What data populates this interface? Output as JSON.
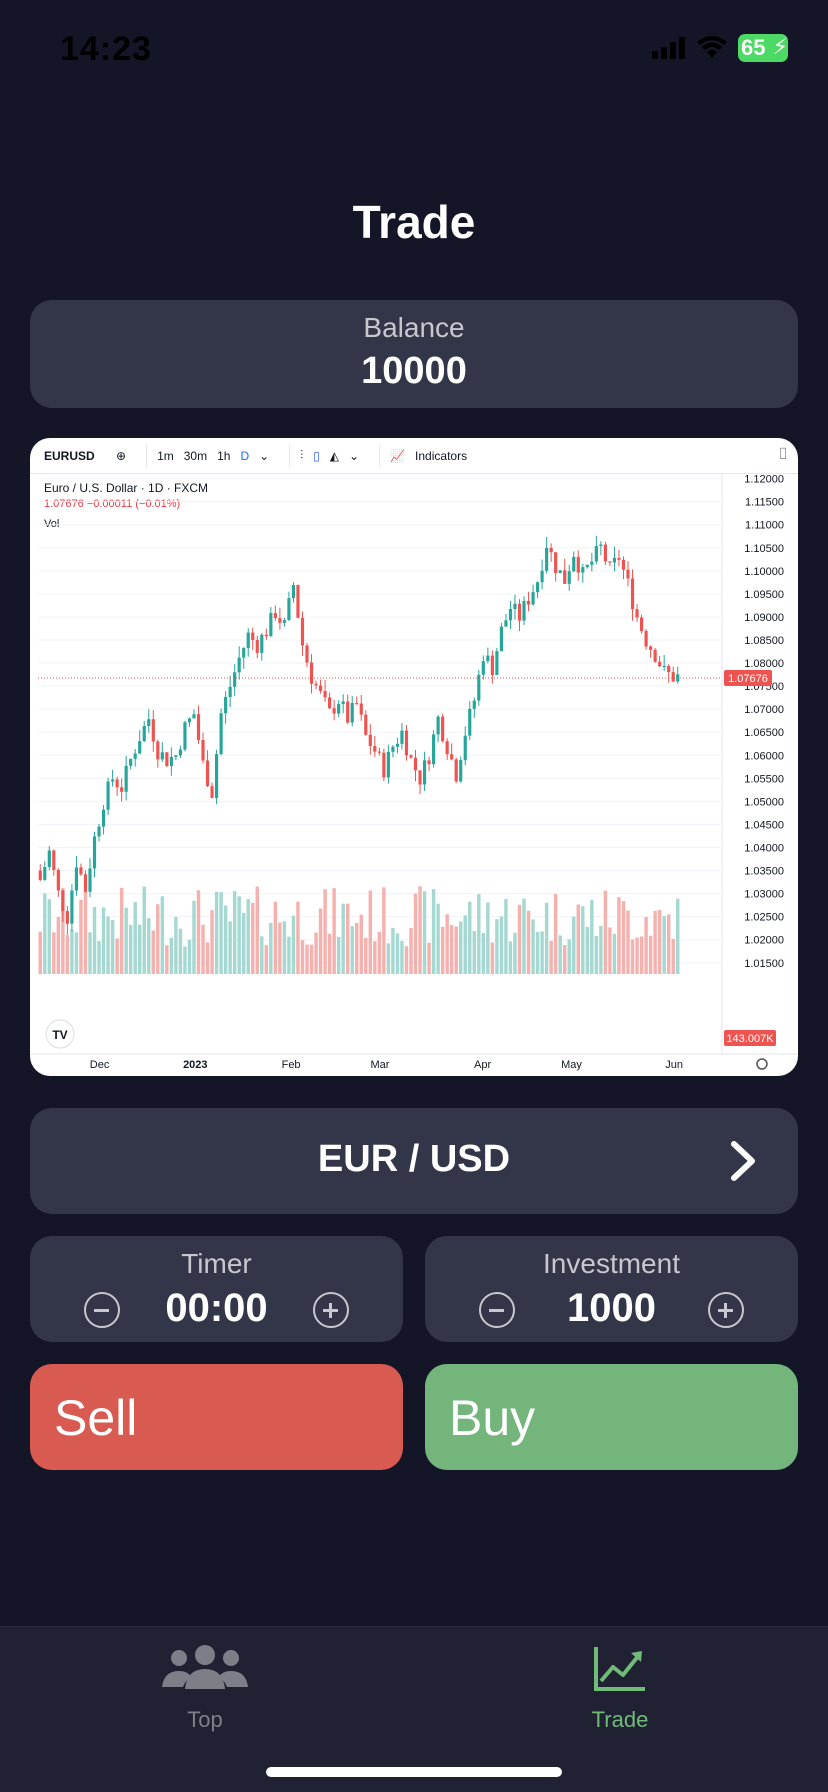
{
  "status_bar": {
    "time": "14:23",
    "battery": "65"
  },
  "page": {
    "title": "Trade"
  },
  "balance": {
    "label": "Balance",
    "value": "10000"
  },
  "chart_data": {
    "type": "candlestick",
    "symbol": "EURUSD",
    "title": "Euro / U.S. Dollar · 1D · FXCM",
    "change_text": "1.07676 −0.00011 (−0.01%)",
    "volume_label": "Vol",
    "toolbar": {
      "intervals": [
        "1m",
        "30m",
        "1h",
        "D"
      ],
      "active_interval": "D",
      "indicators_label": "Indicators"
    },
    "x_tick_labels": [
      "Dec",
      "2023",
      "Feb",
      "Mar",
      "Apr",
      "May",
      "Jun"
    ],
    "y_tick_labels": [
      "1.12000",
      "1.11500",
      "1.11000",
      "1.10500",
      "1.10000",
      "1.09500",
      "1.09000",
      "1.08500",
      "1.08000",
      "1.07500",
      "1.07000",
      "1.06500",
      "1.06000",
      "1.05500",
      "1.05000",
      "1.04500",
      "1.04000",
      "1.03500",
      "1.03000",
      "1.02500",
      "1.02000",
      "1.01500"
    ],
    "ylim": [
      1.013,
      1.121
    ],
    "last_price_label": "1.07676",
    "last_price": 1.07676,
    "last_volume_label": "143.007K",
    "colors": {
      "up": "#26a69a",
      "down": "#ef5350",
      "up_vol": "#a6d8d2",
      "down_vol": "#f5b1ae"
    },
    "close_path": [
      1.033,
      1.039,
      1.03,
      1.025,
      1.037,
      1.031,
      1.042,
      1.05,
      1.055,
      1.053,
      1.059,
      1.064,
      1.068,
      1.061,
      1.059,
      1.06,
      1.066,
      1.069,
      1.058,
      1.052,
      1.069,
      1.075,
      1.081,
      1.086,
      1.084,
      1.087,
      1.091,
      1.088,
      1.097,
      1.084,
      1.077,
      1.073,
      1.069,
      1.072,
      1.068,
      1.071,
      1.064,
      1.061,
      1.057,
      1.062,
      1.065,
      1.059,
      1.055,
      1.06,
      1.068,
      1.062,
      1.056,
      1.065,
      1.072,
      1.082,
      1.079,
      1.087,
      1.092,
      1.09,
      1.094,
      1.098,
      1.106,
      1.101,
      1.098,
      1.104,
      1.099,
      1.102,
      1.105,
      1.1,
      1.103,
      1.097,
      1.09,
      1.085,
      1.082,
      1.078,
      1.077
    ]
  },
  "pair": {
    "label": "EUR / USD"
  },
  "timer": {
    "label": "Timer",
    "value": "00:00"
  },
  "investment": {
    "label": "Investment",
    "value": "1000"
  },
  "actions": {
    "sell_label": "Sell",
    "buy_label": "Buy"
  },
  "tabs": [
    {
      "label": "Top",
      "icon": "people-icon"
    },
    {
      "label": "Trade",
      "icon": "chart-line-icon"
    }
  ]
}
